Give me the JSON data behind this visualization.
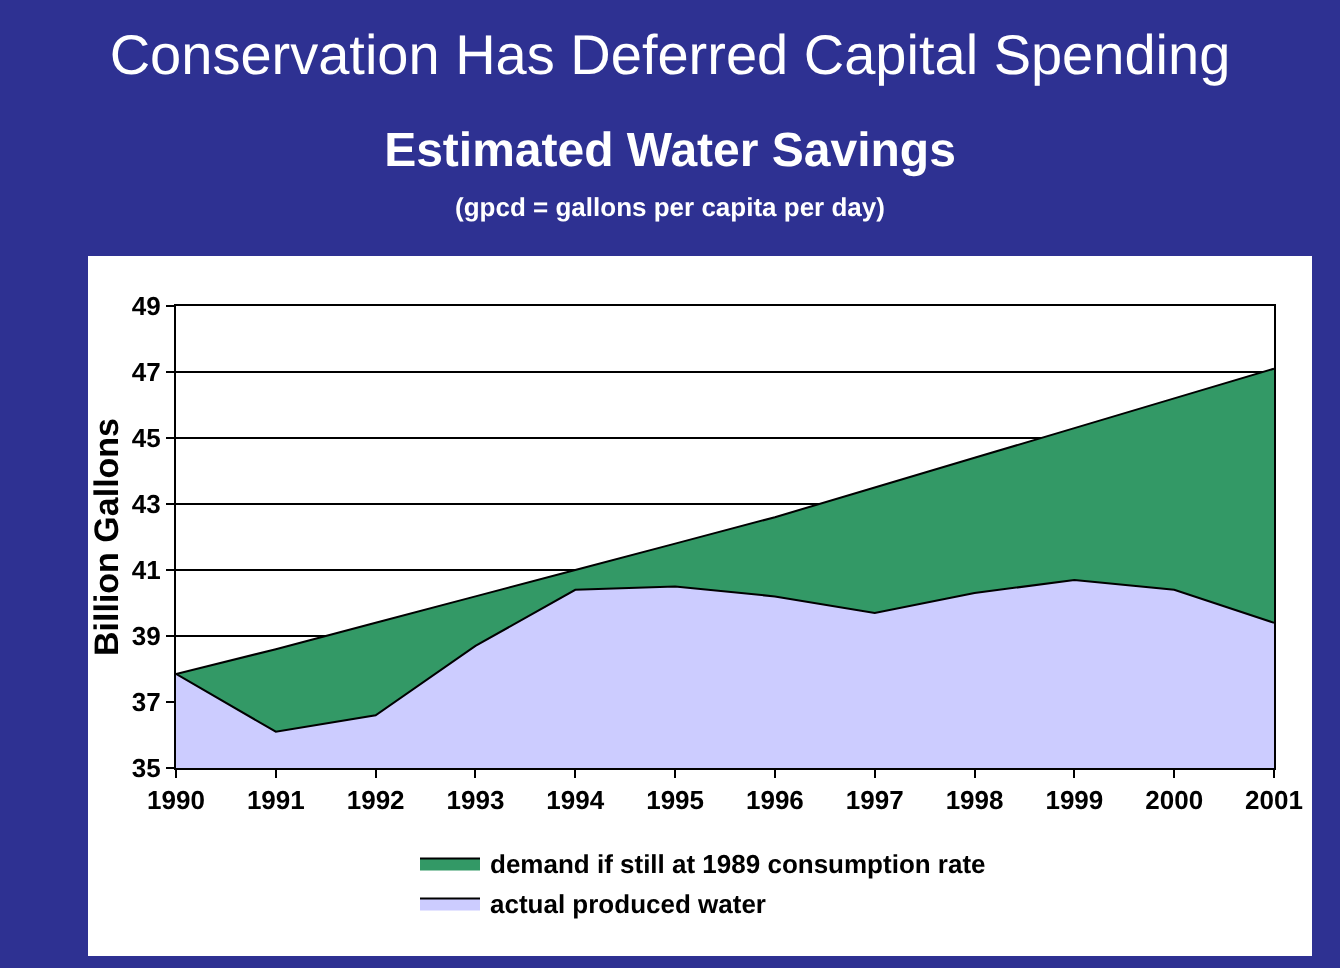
{
  "chart_data": {
    "type": "area",
    "title": "Conservation Has Deferred Capital Spending",
    "subtitle": "Estimated Water Savings",
    "annotations": [
      "(gpcd = gallons per capita per day)"
    ],
    "ylabel": "Billion Gallons",
    "x": [
      1990,
      1991,
      1992,
      1993,
      1994,
      1995,
      1996,
      1997,
      1998,
      1999,
      2000,
      2001
    ],
    "series": [
      {
        "name": "demand if still at 1989 consumption rate",
        "color": "#339966",
        "values": [
          37.85,
          38.6,
          39.4,
          40.2,
          41.0,
          41.8,
          42.6,
          43.5,
          44.4,
          45.3,
          46.2,
          47.1
        ]
      },
      {
        "name": "actual produced water",
        "color": "#ccccff",
        "values": [
          37.85,
          36.1,
          36.6,
          38.7,
          40.4,
          40.5,
          40.2,
          39.7,
          40.3,
          40.7,
          40.4,
          39.4
        ]
      }
    ],
    "xlim": [
      1990,
      2001
    ],
    "xticks": [
      1990,
      1991,
      1992,
      1993,
      1994,
      1995,
      1996,
      1997,
      1998,
      1999,
      2000,
      2001
    ],
    "ylim": [
      35,
      49
    ],
    "yticks": [
      35,
      37,
      39,
      41,
      43,
      45,
      47,
      49
    ],
    "grid": "y",
    "legend": "bottom",
    "marker": "none",
    "line_style": "solid"
  }
}
